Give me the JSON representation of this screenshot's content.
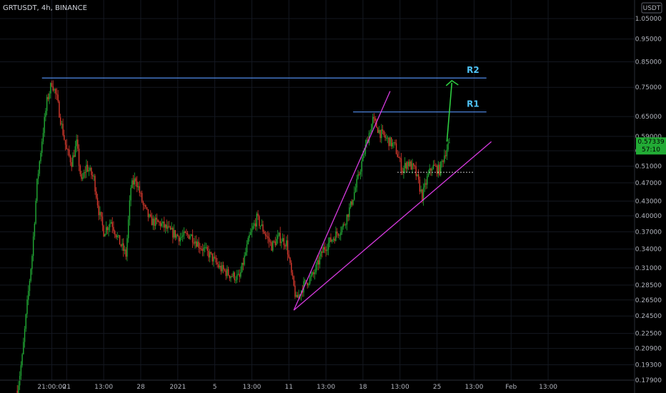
{
  "header": {
    "symbol_line": "GRTUSDT, 4h, BINANCE"
  },
  "currency": "USDT",
  "price_badge": {
    "price": "0.57339",
    "countdown": "57:10"
  },
  "chart_data": {
    "type": "candlestick",
    "title": "GRTUSDT, 4h, BINANCE",
    "ylim": [
      0.179,
      1.15
    ],
    "y_scale": "log",
    "y_ticks": [
      "1.05000",
      "0.95000",
      "0.85000",
      "0.75000",
      "0.65000",
      "0.59000",
      "0.55000",
      "0.51000",
      "0.47000",
      "0.43000",
      "0.40000",
      "0.37000",
      "0.34000",
      "0.31000",
      "0.28500",
      "0.26500",
      "0.24500",
      "0.22500",
      "0.20900",
      "0.19300",
      "0.17900"
    ],
    "x_ticks": [
      "21:00:00",
      "21",
      "13:00",
      "28",
      "2021",
      "5",
      "13:00",
      "11",
      "13:00",
      "18",
      "13:00",
      "25",
      "13:00",
      "Feb",
      "13:00"
    ],
    "x_range": [
      -27,
      230
    ],
    "x_tick_positions": [
      -6,
      0,
      15,
      30,
      45,
      60,
      75,
      90,
      105,
      120,
      135,
      150,
      165,
      180,
      195
    ],
    "colors": {
      "up": "#22ab35",
      "down": "#d93a2e",
      "resistance": "#4a7fd6",
      "wedge": "#d63adf",
      "arrow": "#2ecc40",
      "label": "#4fc3f7",
      "badge": "#22ab35"
    },
    "annotations": [
      {
        "label": "R2",
        "type": "horizontal",
        "value": 0.785,
        "x_from": -10,
        "x_to": 170
      },
      {
        "label": "R1",
        "type": "horizontal",
        "value": 0.665,
        "x_from": 116,
        "x_to": 170
      },
      {
        "label": "",
        "type": "trend",
        "x1": 92,
        "y1": 0.252,
        "x2": 172,
        "y2": 0.575
      },
      {
        "label": "",
        "type": "trend",
        "x1": 92,
        "y1": 0.252,
        "x2": 131,
        "y2": 0.736
      },
      {
        "label": "",
        "type": "dotted",
        "value": 0.495,
        "x_from": 134,
        "x_to": 165
      },
      {
        "label": "",
        "type": "arrow",
        "x1": 154,
        "y1": 0.575,
        "x2": 156,
        "y2": 0.775
      }
    ],
    "anchors": [
      [
        -20,
        0.17
      ],
      [
        -18,
        0.2
      ],
      [
        -16,
        0.26
      ],
      [
        -14,
        0.33
      ],
      [
        -12,
        0.47
      ],
      [
        -10,
        0.58
      ],
      [
        -8,
        0.7
      ],
      [
        -6,
        0.77
      ],
      [
        -4,
        0.71
      ],
      [
        -2,
        0.62
      ],
      [
        0,
        0.55
      ],
      [
        2,
        0.52
      ],
      [
        4,
        0.57
      ],
      [
        6,
        0.47
      ],
      [
        8,
        0.51
      ],
      [
        11,
        0.48
      ],
      [
        13,
        0.41
      ],
      [
        15,
        0.37
      ],
      [
        18,
        0.39
      ],
      [
        21,
        0.355
      ],
      [
        24,
        0.33
      ],
      [
        26,
        0.46
      ],
      [
        28,
        0.48
      ],
      [
        31,
        0.42
      ],
      [
        34,
        0.39
      ],
      [
        38,
        0.385
      ],
      [
        42,
        0.37
      ],
      [
        46,
        0.36
      ],
      [
        50,
        0.365
      ],
      [
        54,
        0.345
      ],
      [
        58,
        0.33
      ],
      [
        62,
        0.31
      ],
      [
        66,
        0.3
      ],
      [
        70,
        0.295
      ],
      [
        74,
        0.36
      ],
      [
        77,
        0.395
      ],
      [
        80,
        0.37
      ],
      [
        83,
        0.345
      ],
      [
        86,
        0.36
      ],
      [
        89,
        0.35
      ],
      [
        91,
        0.3
      ],
      [
        93,
        0.265
      ],
      [
        96,
        0.285
      ],
      [
        100,
        0.3
      ],
      [
        104,
        0.34
      ],
      [
        108,
        0.36
      ],
      [
        112,
        0.38
      ],
      [
        115,
        0.42
      ],
      [
        118,
        0.48
      ],
      [
        121,
        0.56
      ],
      [
        124,
        0.64
      ],
      [
        127,
        0.6
      ],
      [
        130,
        0.58
      ],
      [
        133,
        0.56
      ],
      [
        136,
        0.5
      ],
      [
        138,
        0.52
      ],
      [
        141,
        0.5
      ],
      [
        144,
        0.44
      ],
      [
        146,
        0.48
      ],
      [
        148,
        0.51
      ],
      [
        151,
        0.5
      ],
      [
        153,
        0.54
      ],
      [
        155,
        0.573
      ]
    ],
    "note": "Candle OHLC values are approximated around the anchor path; individual candles are too dense to read exactly."
  }
}
